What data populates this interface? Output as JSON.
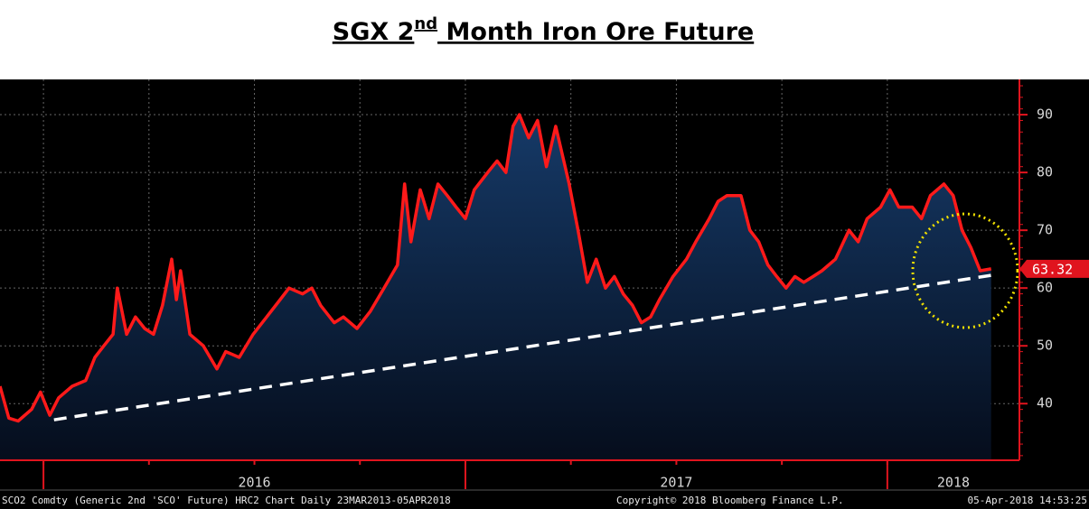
{
  "chart_data": {
    "type": "area-line",
    "title": [
      "SGX 2",
      "nd",
      " Month Iron Ore Future"
    ],
    "footer": [
      "SCO2 Comdty (Generic 2nd 'SCO' Future) HRC2 Chart  Daily 23MAR2013-05APR2018",
      "Copyright© 2018 Bloomberg Finance L.P.",
      "05-Apr-2018 14:53:25"
    ],
    "x": [
      2015.897,
      2015.918,
      2015.94,
      2015.972,
      2015.993,
      2016.015,
      2016.036,
      2016.068,
      2016.1,
      2016.122,
      2016.143,
      2016.165,
      2016.175,
      2016.197,
      2016.218,
      2016.24,
      2016.261,
      2016.282,
      2016.304,
      2016.315,
      2016.325,
      2016.347,
      2016.379,
      2016.411,
      2016.432,
      2016.464,
      2016.497,
      2016.529,
      2016.561,
      2016.582,
      2016.614,
      2016.636,
      2016.657,
      2016.689,
      2016.711,
      2016.743,
      2016.775,
      2016.807,
      2016.839,
      2016.856,
      2016.871,
      2016.893,
      2016.914,
      2016.935,
      2016.957,
      2016.978,
      2017.0,
      2017.021,
      2017.053,
      2017.075,
      2017.096,
      2017.113,
      2017.128,
      2017.15,
      2017.171,
      2017.192,
      2017.214,
      2017.246,
      2017.267,
      2017.289,
      2017.31,
      2017.332,
      2017.353,
      2017.374,
      2017.396,
      2017.417,
      2017.439,
      2017.46,
      2017.492,
      2017.524,
      2017.546,
      2017.578,
      2017.599,
      2017.62,
      2017.653,
      2017.674,
      2017.695,
      2017.717,
      2017.738,
      2017.76,
      2017.781,
      2017.802,
      2017.824,
      2017.845,
      2017.877,
      2017.909,
      2017.931,
      2017.952,
      2017.984,
      2018.006,
      2018.027,
      2018.059,
      2018.081,
      2018.102,
      2018.134,
      2018.156,
      2018.177,
      2018.198,
      2018.22,
      2018.246
    ],
    "series": [
      {
        "color": "#ff1a1a",
        "fill": "#163a68",
        "values": [
          43,
          37.5,
          37,
          39,
          42,
          38,
          41,
          43,
          44,
          48,
          50,
          52,
          60,
          52,
          55,
          53,
          52,
          57,
          65,
          58,
          63,
          52,
          50,
          46,
          49,
          48,
          52,
          55,
          58,
          60,
          59,
          60,
          57,
          54,
          55,
          53,
          56,
          60,
          64,
          78,
          68,
          77,
          72,
          78,
          76,
          74,
          72,
          77,
          80,
          82,
          80,
          88,
          90,
          86,
          89,
          81,
          88,
          78,
          70,
          61,
          65,
          60,
          62,
          59,
          57,
          54,
          55,
          58,
          62,
          65,
          68,
          72,
          75,
          76,
          76,
          70,
          68,
          64,
          62,
          60,
          62,
          61,
          62,
          63,
          65,
          70,
          68,
          72,
          74,
          77,
          74,
          74,
          72,
          76,
          78,
          76,
          70,
          67,
          63,
          63.32
        ]
      }
    ],
    "trendline": {
      "color": "#ffffff",
      "x": [
        2016.025,
        2018.246
      ],
      "values": [
        37.2,
        62.2
      ]
    },
    "xlim": [
      2015.897,
      2018.313
    ],
    "xticks": [
      2016,
      2016.25,
      2016.5,
      2016.75,
      2017,
      2017.25,
      2017.5,
      2017.75,
      2018
    ],
    "year_ticks": [
      2016,
      2017,
      2018
    ],
    "year_labels": [
      "2016",
      "2017",
      "2018"
    ],
    "ylim": [
      30.2,
      96.1
    ],
    "yticks": [
      40,
      50,
      60,
      70,
      80,
      90
    ],
    "grid": true
  }
}
